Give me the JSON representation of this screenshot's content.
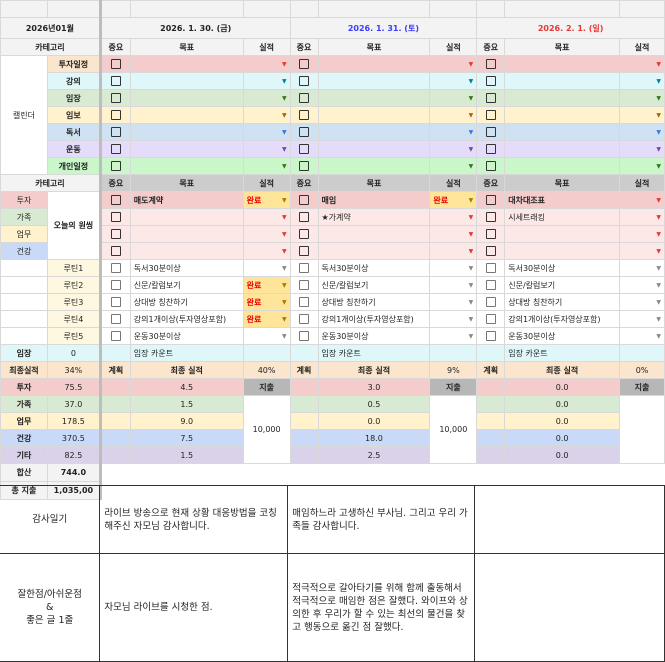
{
  "month_label": "2026년01월",
  "col_headers": {
    "category": "카테고리",
    "importance": "중요",
    "goal": "목표",
    "result": "실적"
  },
  "calendar_label": "캘린더",
  "calendar_categories": [
    {
      "label": "투자일정",
      "label_bg": "#fce5cd",
      "bg": "#f4cccc",
      "arrow": "#e53935"
    },
    {
      "label": "강의",
      "label_bg": "#e0f7fa",
      "bg": "#e0f7fa",
      "arrow": "#00838f"
    },
    {
      "label": "임장",
      "label_bg": "#d9ead3",
      "bg": "#d9ead3",
      "arrow": "#38761d"
    },
    {
      "label": "임보",
      "label_bg": "#fff2cc",
      "bg": "#fff2cc",
      "arrow": "#b45f06"
    },
    {
      "label": "독서",
      "label_bg": "#cfe2f3",
      "bg": "#cfe2f3",
      "arrow": "#3c78d8"
    },
    {
      "label": "운동",
      "label_bg": "#e4dcfa",
      "bg": "#e4dcfa",
      "arrow": "#674ea7"
    },
    {
      "label": "개인일정",
      "label_bg": "#c9f7c9",
      "bg": "#c9f7c9",
      "arrow": "#38761d"
    }
  ],
  "oneshing_label": "오늘의 원씽",
  "oneshing_categories": [
    {
      "label": "투자",
      "bg": "#f4cccc"
    },
    {
      "label": "가족",
      "bg": "#d9ead3"
    },
    {
      "label": "업무",
      "bg": "#fff2cc"
    },
    {
      "label": "건강",
      "bg": "#c9daf8"
    }
  ],
  "routine_labels": [
    "루틴1",
    "루틴2",
    "루틴3",
    "루틴4",
    "루틴5"
  ],
  "imjang": {
    "label": "임장",
    "value": "0"
  },
  "final": {
    "label": "최종실적",
    "value": "34%"
  },
  "summary": [
    {
      "label": "투자",
      "value": "75.5",
      "bg": "#f4cccc"
    },
    {
      "label": "가족",
      "value": "37.0",
      "bg": "#d9ead3"
    },
    {
      "label": "업무",
      "value": "178.5",
      "bg": "#fff2cc"
    },
    {
      "label": "건강",
      "value": "370.5",
      "bg": "#c9daf8"
    },
    {
      "label": "기타",
      "value": "82.5",
      "bg": "#d9d2e9"
    }
  ],
  "total": {
    "label": "합산",
    "value": "744.0"
  },
  "total_spend": {
    "label": "총 지출",
    "value": "1,035,00"
  },
  "days": [
    {
      "date": "2026. 1. 30. (금)",
      "color": "#222222",
      "oneshing": [
        {
          "goal": "매도계약",
          "result": "완료"
        },
        {
          "goal": "",
          "result": ""
        },
        {
          "goal": "",
          "result": ""
        },
        {
          "goal": "",
          "result": ""
        }
      ],
      "routines": [
        {
          "goal": "독서30분이상",
          "result": ""
        },
        {
          "goal": "신문/칼럼보기",
          "result": "완료"
        },
        {
          "goal": "상대방 칭찬하기",
          "result": "완료"
        },
        {
          "goal": "강의1개이상(투자영상포함)",
          "result": "완료"
        },
        {
          "goal": "운동30분이상",
          "result": ""
        }
      ],
      "imjang_label": "임장 카운트",
      "plan_label": "계획",
      "final_label": "최종 실적",
      "pct": "40%",
      "results": [
        "4.5",
        "1.5",
        "9.0",
        "7.5",
        "1.5"
      ],
      "spend_label": "지출",
      "spend": "10,000"
    },
    {
      "date": "2026. 1. 31. (토)",
      "color": "#3c3cff",
      "oneshing": [
        {
          "goal": "매임",
          "result": "완료"
        },
        {
          "goal": "★가계약",
          "result": ""
        },
        {
          "goal": "",
          "result": ""
        },
        {
          "goal": "",
          "result": ""
        }
      ],
      "routines": [
        {
          "goal": "독서30분이상",
          "result": ""
        },
        {
          "goal": "신문/칼럼보기",
          "result": ""
        },
        {
          "goal": "상대방 칭찬하기",
          "result": ""
        },
        {
          "goal": "강의1개이상(투자영상포함)",
          "result": ""
        },
        {
          "goal": "운동30분이상",
          "result": ""
        }
      ],
      "imjang_label": "임장 카운트",
      "plan_label": "계획",
      "final_label": "최종 실적",
      "pct": "9%",
      "results": [
        "3.0",
        "0.5",
        "0.0",
        "18.0",
        "2.5"
      ],
      "spend_label": "지출",
      "spend": "10,000"
    },
    {
      "date": "2026. 2. 1. (일)",
      "color": "#e53935",
      "oneshing": [
        {
          "goal": "대차대조표",
          "result": ""
        },
        {
          "goal": "시세트래킹",
          "result": ""
        },
        {
          "goal": "",
          "result": ""
        },
        {
          "goal": "",
          "result": ""
        }
      ],
      "routines": [
        {
          "goal": "독서30분이상",
          "result": ""
        },
        {
          "goal": "신문/칼럼보기",
          "result": ""
        },
        {
          "goal": "상대방 칭찬하기",
          "result": ""
        },
        {
          "goal": "강의1개이상(투자영상포함)",
          "result": ""
        },
        {
          "goal": "운동30분이상",
          "result": ""
        }
      ],
      "imjang_label": "임장 카운트",
      "plan_label": "계획",
      "final_label": "최종 실적",
      "pct": "0%",
      "results": [
        "0.0",
        "0.0",
        "0.0",
        "0.0",
        "0.0"
      ],
      "spend_label": "지출",
      "spend": ""
    }
  ],
  "journal": {
    "gratitude_label": "감사일기",
    "gratitude": [
      "라이브 방송으로 현재 상황 대응방법을 코칭해주신 자모님 감사합니다.",
      "매임하느라 고생하신 부사님. 그리고 우리 가족들 감사합니다.",
      ""
    ],
    "good_label": "잘한점/아쉬운점\n&\n좋은 글 1줄",
    "good": [
      "자모님 라이브를 시청한 점.",
      "적극적으로 갈아타기를 위해 함께 출동해서 적극적으로 매임한 점은 잘했다. 와이프와 상의한 후 우리가 할 수 있는 최선의 물건을 찾고 행동으로 옮긴 점 잘했다.",
      ""
    ]
  }
}
